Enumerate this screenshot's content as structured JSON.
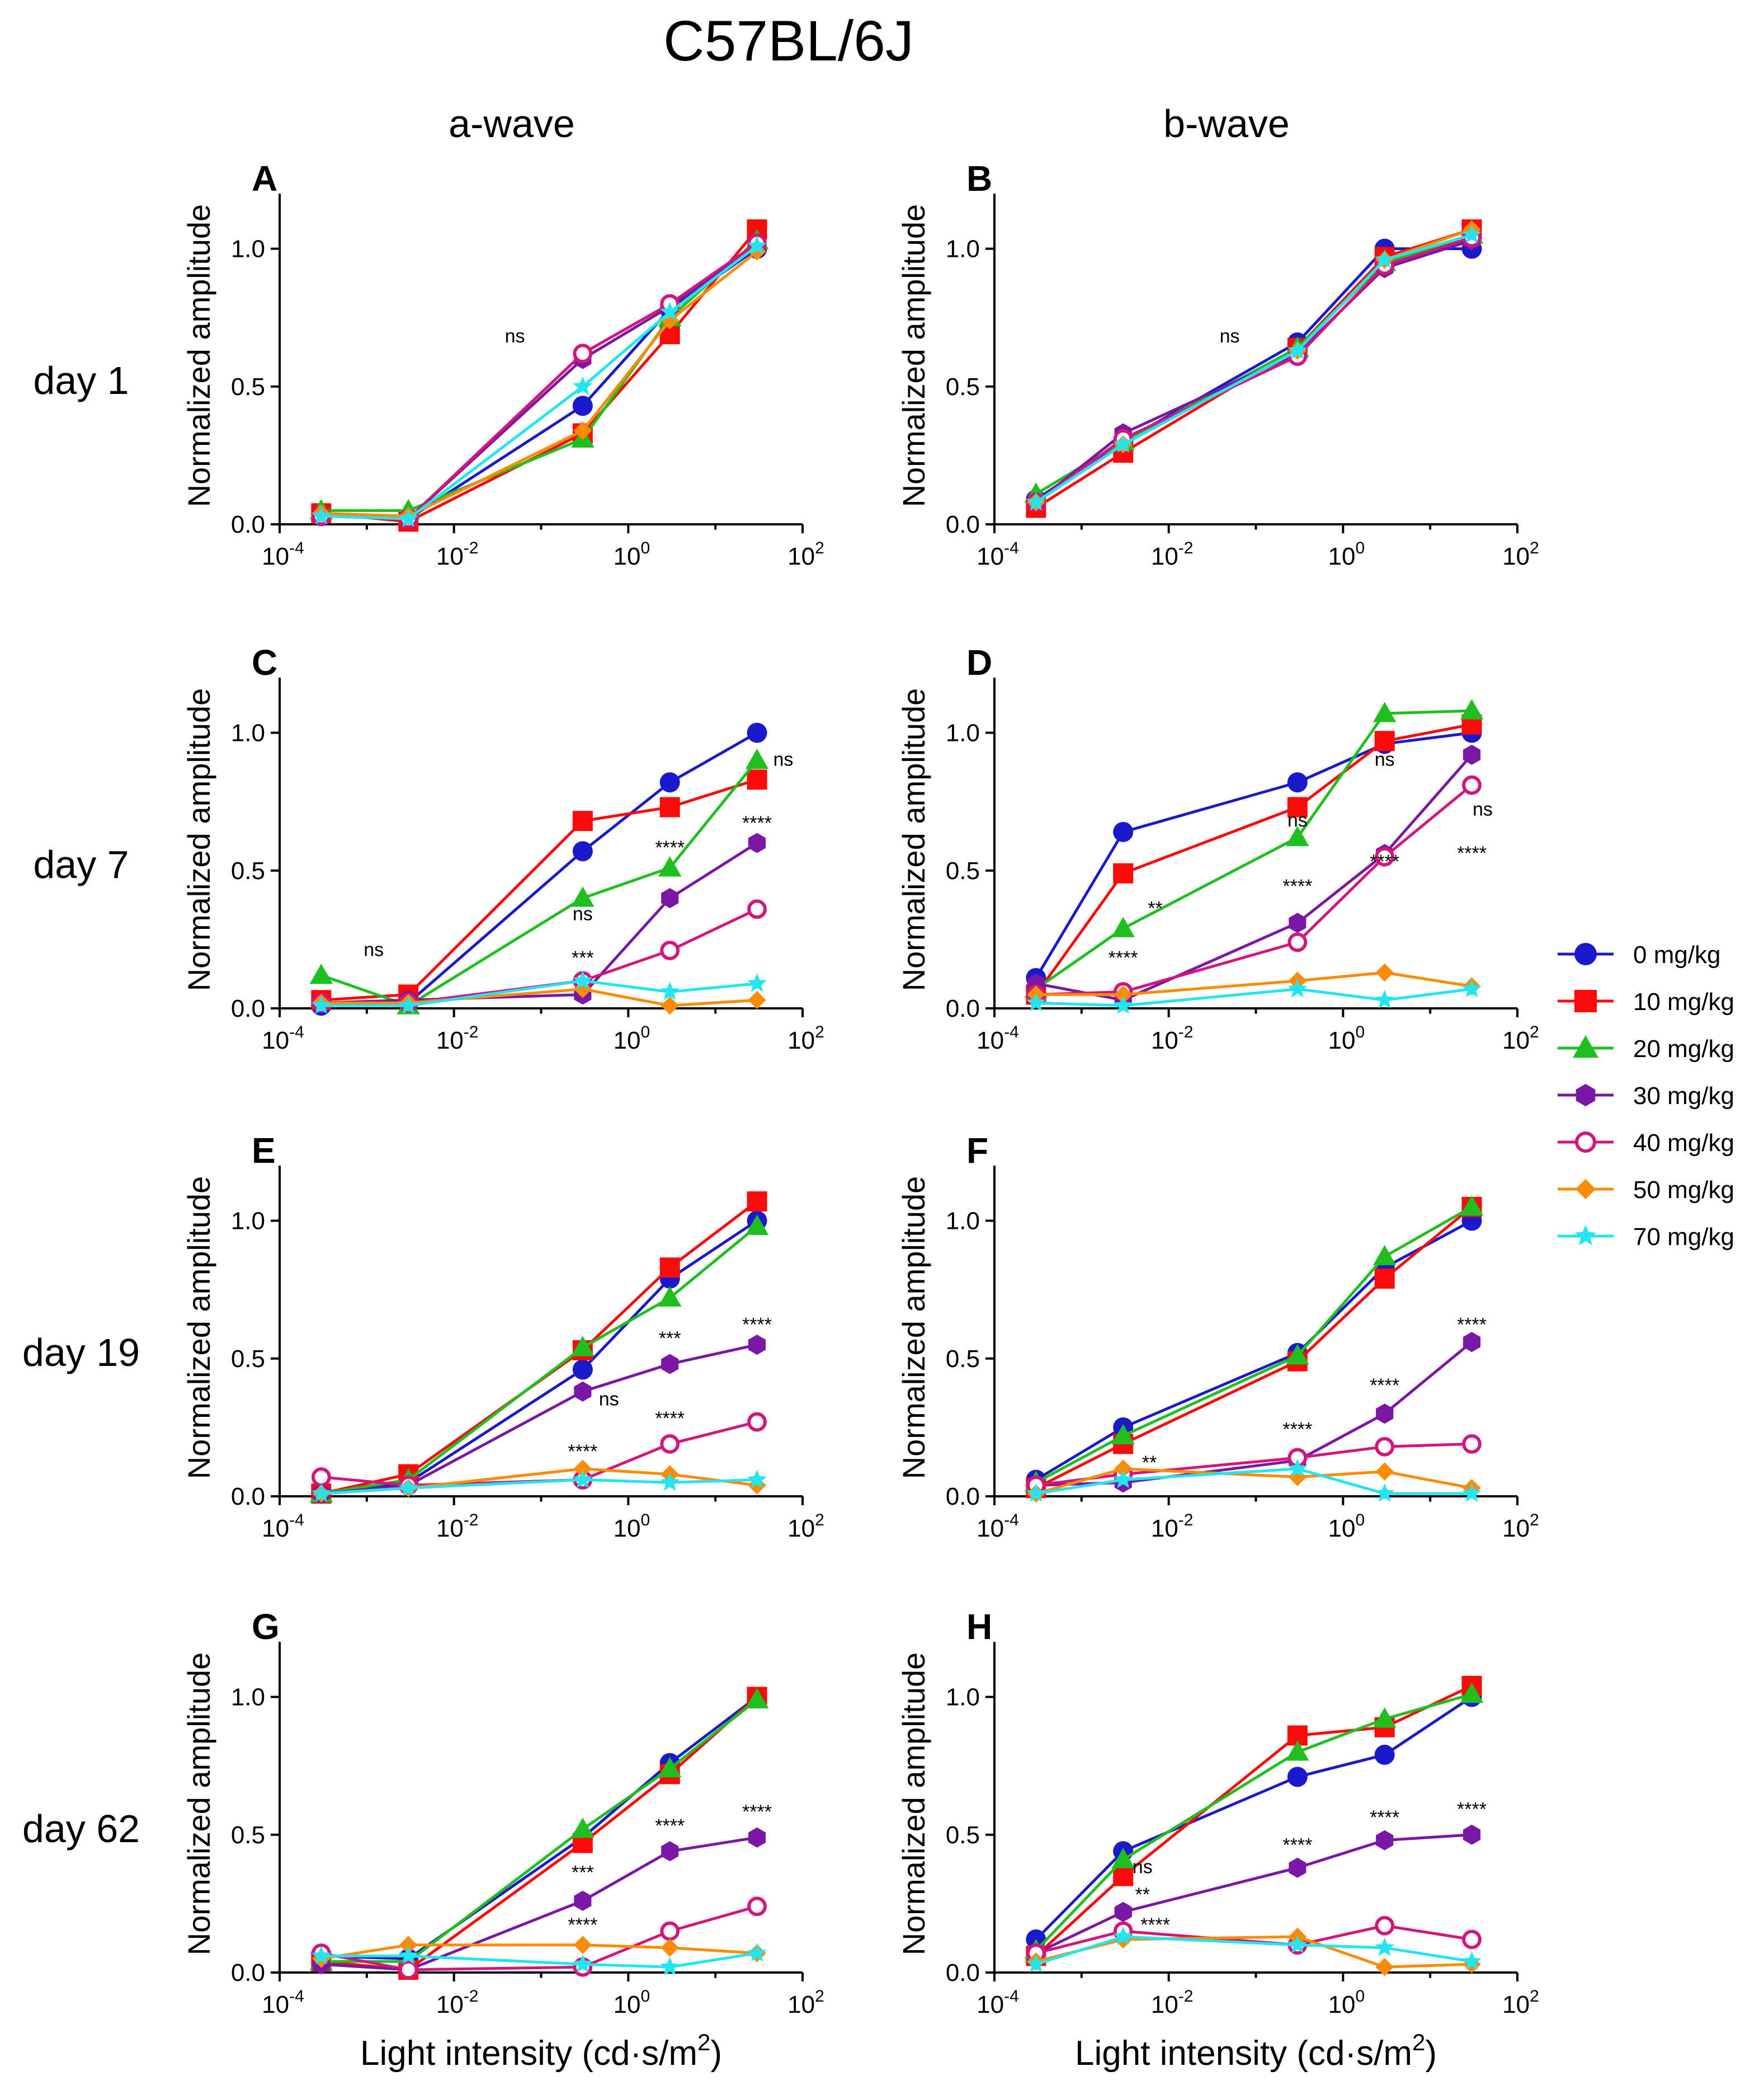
{
  "title": "C57BL/6J",
  "column_titles": [
    "a-wave",
    "b-wave"
  ],
  "row_labels": [
    "day 1",
    "day 7",
    "day 19",
    "day 62"
  ],
  "ylabel": "Normalized amplitude",
  "xlabel": "Light intensity (cd·s/m",
  "xlabel_sup": "2",
  "xlabel_close": ")",
  "yticks": [
    "0.0",
    "0.5",
    "1.0"
  ],
  "xticks": [
    {
      "base": "10",
      "exp": "-4"
    },
    {
      "base": "10",
      "exp": "-2"
    },
    {
      "base": "10",
      "exp": "0"
    },
    {
      "base": "10",
      "exp": "2"
    }
  ],
  "legend": [
    {
      "label": "0 mg/kg",
      "color": "#1a1acc",
      "marker": "circle"
    },
    {
      "label": "10 mg/kg",
      "color": "#ff0a0a",
      "marker": "square"
    },
    {
      "label": "20 mg/kg",
      "color": "#1fbf1f",
      "marker": "triangle"
    },
    {
      "label": "30 mg/kg",
      "color": "#7a17a6",
      "marker": "hexagon"
    },
    {
      "label": "40 mg/kg",
      "color": "#d4157a",
      "marker": "open-circle"
    },
    {
      "label": "50 mg/kg",
      "color": "#ff8c00",
      "marker": "diamond"
    },
    {
      "label": "70 mg/kg",
      "color": "#21e6f2",
      "marker": "star"
    }
  ],
  "chart_data": [
    {
      "panel": "A",
      "type": "line",
      "title": "a-wave, day 1",
      "xscale": "log",
      "xlim": [
        0.0001,
        100
      ],
      "ylim": [
        0,
        1.2
      ],
      "x": [
        0.0003,
        0.003,
        0.3,
        3,
        30
      ],
      "series": [
        {
          "name": "0 mg/kg",
          "values": [
            0.03,
            0.02,
            0.43,
            0.78,
            1.0
          ]
        },
        {
          "name": "10 mg/kg",
          "values": [
            0.04,
            0.01,
            0.33,
            0.69,
            1.07
          ]
        },
        {
          "name": "20 mg/kg",
          "values": [
            0.05,
            0.05,
            0.31,
            0.75,
            1.03
          ]
        },
        {
          "name": "30 mg/kg",
          "values": [
            0.03,
            0.02,
            0.6,
            0.79,
            1.01
          ]
        },
        {
          "name": "40 mg/kg",
          "values": [
            0.03,
            0.02,
            0.62,
            0.8,
            1.02
          ]
        },
        {
          "name": "50 mg/kg",
          "values": [
            0.04,
            0.03,
            0.34,
            0.74,
            0.99
          ]
        },
        {
          "name": "70 mg/kg",
          "values": [
            0.03,
            0.02,
            0.5,
            0.77,
            1.01
          ]
        }
      ],
      "annotations": [
        {
          "text": "ns",
          "x": 0.05,
          "y": 0.66
        }
      ]
    },
    {
      "panel": "B",
      "type": "line",
      "title": "b-wave, day 1",
      "xscale": "log",
      "xlim": [
        0.0001,
        100
      ],
      "ylim": [
        0,
        1.2
      ],
      "x": [
        0.0003,
        0.003,
        0.3,
        3,
        30
      ],
      "series": [
        {
          "name": "0 mg/kg",
          "values": [
            0.09,
            0.3,
            0.66,
            1.0,
            1.0
          ]
        },
        {
          "name": "10 mg/kg",
          "values": [
            0.06,
            0.26,
            0.64,
            0.97,
            1.07
          ]
        },
        {
          "name": "20 mg/kg",
          "values": [
            0.11,
            0.3,
            0.64,
            0.95,
            1.05
          ]
        },
        {
          "name": "30 mg/kg",
          "values": [
            0.08,
            0.33,
            0.62,
            0.93,
            1.03
          ]
        },
        {
          "name": "40 mg/kg",
          "values": [
            0.08,
            0.31,
            0.61,
            0.94,
            1.04
          ]
        },
        {
          "name": "50 mg/kg",
          "values": [
            0.08,
            0.29,
            0.63,
            0.96,
            1.07
          ]
        },
        {
          "name": "70 mg/kg",
          "values": [
            0.08,
            0.29,
            0.63,
            0.96,
            1.05
          ]
        }
      ],
      "annotations": [
        {
          "text": "ns",
          "x": 0.05,
          "y": 0.66
        }
      ]
    },
    {
      "panel": "C",
      "type": "line",
      "title": "a-wave, day 7",
      "xscale": "log",
      "xlim": [
        0.0001,
        100
      ],
      "ylim": [
        0,
        1.2
      ],
      "x": [
        0.0003,
        0.003,
        0.3,
        3,
        30
      ],
      "series": [
        {
          "name": "0 mg/kg",
          "values": [
            0.01,
            0.02,
            0.57,
            0.82,
            1.0
          ]
        },
        {
          "name": "10 mg/kg",
          "values": [
            0.03,
            0.05,
            0.68,
            0.73,
            0.83
          ]
        },
        {
          "name": "20 mg/kg",
          "values": [
            0.12,
            0.01,
            0.4,
            0.51,
            0.9
          ]
        },
        {
          "name": "30 mg/kg",
          "values": [
            0.02,
            0.03,
            0.05,
            0.4,
            0.6
          ]
        },
        {
          "name": "40 mg/kg",
          "values": [
            0.02,
            0.02,
            0.1,
            0.21,
            0.36
          ]
        },
        {
          "name": "50 mg/kg",
          "values": [
            0.02,
            0.02,
            0.07,
            0.01,
            0.03
          ]
        },
        {
          "name": "70 mg/kg",
          "values": [
            0.01,
            0.01,
            0.1,
            0.06,
            0.09
          ]
        }
      ],
      "annotations": [
        {
          "text": "ns",
          "x": 0.0012,
          "y": 0.19
        },
        {
          "text": "***",
          "x": 0.3,
          "y": 0.16
        },
        {
          "text": "ns",
          "x": 0.3,
          "y": 0.32
        },
        {
          "text": "****",
          "x": 3,
          "y": 0.56
        },
        {
          "text": "****",
          "x": 30,
          "y": 0.65
        },
        {
          "text": "ns",
          "x": 60,
          "y": 0.88
        }
      ]
    },
    {
      "panel": "D",
      "type": "line",
      "title": "b-wave, day 7",
      "xscale": "log",
      "xlim": [
        0.0001,
        100
      ],
      "ylim": [
        0,
        1.2
      ],
      "x": [
        0.0003,
        0.003,
        0.3,
        3,
        30
      ],
      "series": [
        {
          "name": "0 mg/kg",
          "values": [
            0.11,
            0.64,
            0.82,
            0.96,
            1.0
          ]
        },
        {
          "name": "10 mg/kg",
          "values": [
            0.05,
            0.49,
            0.73,
            0.97,
            1.03
          ]
        },
        {
          "name": "20 mg/kg",
          "values": [
            0.07,
            0.29,
            0.62,
            1.07,
            1.08
          ]
        },
        {
          "name": "30 mg/kg",
          "values": [
            0.09,
            0.03,
            0.31,
            0.56,
            0.92
          ]
        },
        {
          "name": "40 mg/kg",
          "values": [
            0.05,
            0.06,
            0.24,
            0.55,
            0.81
          ]
        },
        {
          "name": "50 mg/kg",
          "values": [
            0.05,
            0.05,
            0.1,
            0.13,
            0.08
          ]
        },
        {
          "name": "70 mg/kg",
          "values": [
            0.02,
            0.01,
            0.07,
            0.03,
            0.07
          ]
        }
      ],
      "annotations": [
        {
          "text": "****",
          "x": 0.003,
          "y": 0.16
        },
        {
          "text": "**",
          "x": 0.007,
          "y": 0.34
        },
        {
          "text": "ns",
          "x": 0.3,
          "y": 0.66
        },
        {
          "text": "****",
          "x": 0.3,
          "y": 0.42
        },
        {
          "text": "ns",
          "x": 3,
          "y": 0.88
        },
        {
          "text": "****",
          "x": 3,
          "y": 0.51
        },
        {
          "text": "****",
          "x": 30,
          "y": 0.54
        },
        {
          "text": "ns",
          "x": 40,
          "y": 0.7
        }
      ]
    },
    {
      "panel": "E",
      "type": "line",
      "title": "a-wave, day 19",
      "xscale": "log",
      "xlim": [
        0.0001,
        100
      ],
      "ylim": [
        0,
        1.2
      ],
      "x": [
        0.0003,
        0.003,
        0.3,
        3,
        30
      ],
      "series": [
        {
          "name": "0 mg/kg",
          "values": [
            0.01,
            0.05,
            0.46,
            0.79,
            1.0
          ]
        },
        {
          "name": "10 mg/kg",
          "values": [
            0.01,
            0.08,
            0.53,
            0.83,
            1.07
          ]
        },
        {
          "name": "20 mg/kg",
          "values": [
            0.01,
            0.06,
            0.54,
            0.72,
            0.98
          ]
        },
        {
          "name": "30 mg/kg",
          "values": [
            0.01,
            0.04,
            0.38,
            0.48,
            0.55
          ]
        },
        {
          "name": "40 mg/kg",
          "values": [
            0.07,
            0.04,
            0.06,
            0.19,
            0.27
          ]
        },
        {
          "name": "50 mg/kg",
          "values": [
            0.01,
            0.03,
            0.1,
            0.08,
            0.04
          ]
        },
        {
          "name": "70 mg/kg",
          "values": [
            0.01,
            0.03,
            0.06,
            0.05,
            0.06
          ]
        }
      ],
      "annotations": [
        {
          "text": "****",
          "x": 0.3,
          "y": 0.14
        },
        {
          "text": "ns",
          "x": 0.6,
          "y": 0.33
        },
        {
          "text": "****",
          "x": 3,
          "y": 0.26
        },
        {
          "text": "***",
          "x": 3,
          "y": 0.55
        },
        {
          "text": "****",
          "x": 30,
          "y": 0.6
        }
      ]
    },
    {
      "panel": "F",
      "type": "line",
      "title": "b-wave, day 19",
      "xscale": "log",
      "xlim": [
        0.0001,
        100
      ],
      "ylim": [
        0,
        1.2
      ],
      "x": [
        0.0003,
        0.003,
        0.3,
        3,
        30
      ],
      "series": [
        {
          "name": "0 mg/kg",
          "values": [
            0.06,
            0.25,
            0.52,
            0.83,
            1.0
          ]
        },
        {
          "name": "10 mg/kg",
          "values": [
            0.03,
            0.19,
            0.49,
            0.79,
            1.05
          ]
        },
        {
          "name": "20 mg/kg",
          "values": [
            0.05,
            0.22,
            0.51,
            0.87,
            1.05
          ]
        },
        {
          "name": "30 mg/kg",
          "values": [
            0.04,
            0.05,
            0.13,
            0.3,
            0.56
          ]
        },
        {
          "name": "40 mg/kg",
          "values": [
            0.04,
            0.08,
            0.14,
            0.18,
            0.19
          ]
        },
        {
          "name": "50 mg/kg",
          "values": [
            0.01,
            0.1,
            0.07,
            0.09,
            0.03
          ]
        },
        {
          "name": "70 mg/kg",
          "values": [
            0.01,
            0.06,
            0.1,
            0.01,
            0.01
          ]
        }
      ],
      "annotations": [
        {
          "text": "**",
          "x": 0.006,
          "y": 0.1
        },
        {
          "text": "****",
          "x": 0.3,
          "y": 0.22
        },
        {
          "text": "****",
          "x": 3,
          "y": 0.38
        },
        {
          "text": "****",
          "x": 30,
          "y": 0.6
        }
      ]
    },
    {
      "panel": "G",
      "type": "line",
      "title": "a-wave, day 62",
      "xscale": "log",
      "xlim": [
        0.0001,
        100
      ],
      "ylim": [
        0,
        1.2
      ],
      "x": [
        0.0003,
        0.003,
        0.3,
        3,
        30
      ],
      "series": [
        {
          "name": "0 mg/kg",
          "values": [
            0.06,
            0.05,
            0.49,
            0.76,
            1.0
          ]
        },
        {
          "name": "10 mg/kg",
          "values": [
            0.04,
            0.01,
            0.47,
            0.72,
            1.0
          ]
        },
        {
          "name": "20 mg/kg",
          "values": [
            0.04,
            0.04,
            0.52,
            0.74,
            0.99
          ]
        },
        {
          "name": "30 mg/kg",
          "values": [
            0.03,
            0.01,
            0.26,
            0.44,
            0.49
          ]
        },
        {
          "name": "40 mg/kg",
          "values": [
            0.07,
            0.01,
            0.02,
            0.15,
            0.24
          ]
        },
        {
          "name": "50 mg/kg",
          "values": [
            0.05,
            0.1,
            0.1,
            0.09,
            0.07
          ]
        },
        {
          "name": "70 mg/kg",
          "values": [
            0.06,
            0.06,
            0.03,
            0.02,
            0.07
          ]
        }
      ],
      "annotations": [
        {
          "text": "****",
          "x": 0.3,
          "y": 0.15
        },
        {
          "text": "***",
          "x": 0.3,
          "y": 0.34
        },
        {
          "text": "****",
          "x": 3,
          "y": 0.51
        },
        {
          "text": "****",
          "x": 30,
          "y": 0.56
        }
      ]
    },
    {
      "panel": "H",
      "type": "line",
      "title": "b-wave, day 62",
      "xscale": "log",
      "xlim": [
        0.0001,
        100
      ],
      "ylim": [
        0,
        1.2
      ],
      "x": [
        0.0003,
        0.003,
        0.3,
        3,
        30
      ],
      "series": [
        {
          "name": "0 mg/kg",
          "values": [
            0.12,
            0.44,
            0.71,
            0.79,
            1.0
          ]
        },
        {
          "name": "10 mg/kg",
          "values": [
            0.06,
            0.35,
            0.86,
            0.89,
            1.04
          ]
        },
        {
          "name": "20 mg/kg",
          "values": [
            0.08,
            0.41,
            0.8,
            0.92,
            1.01
          ]
        },
        {
          "name": "30 mg/kg",
          "values": [
            0.07,
            0.22,
            0.38,
            0.48,
            0.5
          ]
        },
        {
          "name": "40 mg/kg",
          "values": [
            0.07,
            0.15,
            0.1,
            0.17,
            0.12
          ]
        },
        {
          "name": "50 mg/kg",
          "values": [
            0.04,
            0.12,
            0.13,
            0.02,
            0.03
          ]
        },
        {
          "name": "70 mg/kg",
          "values": [
            0.03,
            0.13,
            0.1,
            0.09,
            0.04
          ]
        }
      ],
      "annotations": [
        {
          "text": "ns",
          "x": 0.005,
          "y": 0.36
        },
        {
          "text": "**",
          "x": 0.005,
          "y": 0.26
        },
        {
          "text": "****",
          "x": 0.007,
          "y": 0.15
        },
        {
          "text": "****",
          "x": 0.3,
          "y": 0.44
        },
        {
          "text": "****",
          "x": 3,
          "y": 0.54
        },
        {
          "text": "****",
          "x": 30,
          "y": 0.57
        }
      ]
    }
  ]
}
